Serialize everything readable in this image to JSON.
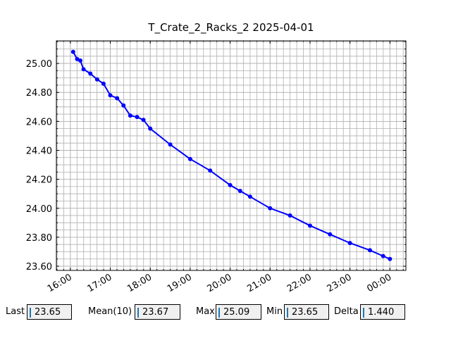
{
  "chart_data": {
    "type": "line",
    "title": "T_Crate_2_Racks_2 2025-04-01",
    "x": [
      16.07,
      16.17,
      16.25,
      16.33,
      16.5,
      16.67,
      16.83,
      17.0,
      17.17,
      17.33,
      17.5,
      17.67,
      17.83,
      18.0,
      18.5,
      19.0,
      19.5,
      20.0,
      20.25,
      20.5,
      21.0,
      21.5,
      22.0,
      22.5,
      23.0,
      23.5,
      23.83,
      24.0
    ],
    "series": [
      {
        "name": "T_Crate_2_Racks_2",
        "color": "#0000ff",
        "values": [
          25.08,
          25.03,
          25.02,
          24.96,
          24.93,
          24.89,
          24.86,
          24.78,
          24.76,
          24.71,
          24.64,
          24.63,
          24.61,
          24.55,
          24.44,
          24.34,
          24.26,
          24.16,
          24.12,
          24.08,
          24.0,
          23.95,
          23.88,
          23.82,
          23.76,
          23.71,
          23.67,
          23.65
        ]
      }
    ],
    "xlim": [
      15.65,
      24.4
    ],
    "ylim": [
      23.571,
      25.156
    ],
    "xticks": [
      {
        "value": 16,
        "label": "16:00"
      },
      {
        "value": 17,
        "label": "17:00"
      },
      {
        "value": 18,
        "label": "18:00"
      },
      {
        "value": 19,
        "label": "19:00"
      },
      {
        "value": 20,
        "label": "20:00"
      },
      {
        "value": 21,
        "label": "21:00"
      },
      {
        "value": 22,
        "label": "22:00"
      },
      {
        "value": 23,
        "label": "23:00"
      },
      {
        "value": 24,
        "label": "00:00"
      }
    ],
    "yticks": [
      {
        "value": 23.6,
        "label": "23.60"
      },
      {
        "value": 23.8,
        "label": "23.80"
      },
      {
        "value": 24,
        "label": "24.00"
      },
      {
        "value": 24.2,
        "label": "24.20"
      },
      {
        "value": 24.4,
        "label": "24.40"
      },
      {
        "value": 24.6,
        "label": "24.60"
      },
      {
        "value": 24.8,
        "label": "24.80"
      },
      {
        "value": 25,
        "label": "25.00"
      }
    ],
    "grid": true,
    "minor_divisions": {
      "x": 6,
      "y": 4
    }
  },
  "status_bar": {
    "fields": [
      {
        "label": "Last",
        "value": "23.65"
      },
      {
        "label": "Mean(10)",
        "value": "23.67"
      },
      {
        "label": "Max",
        "value": "25.09"
      },
      {
        "label": "Min",
        "value": "23.65"
      },
      {
        "label": "Delta",
        "value": "1.440"
      }
    ]
  }
}
